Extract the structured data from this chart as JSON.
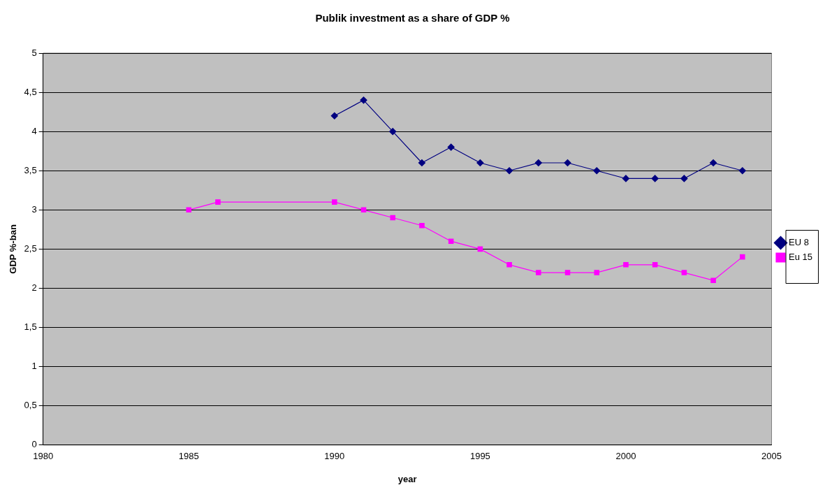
{
  "chart_data": {
    "type": "line",
    "title": "Publik investment as a share of GDP %",
    "xlabel": "year",
    "ylabel": "GDP %-ban",
    "xlim": [
      1980,
      2005
    ],
    "xticks": [
      1980,
      1985,
      1990,
      1995,
      2000,
      2005
    ],
    "ylim": [
      0,
      5
    ],
    "yticks": [
      0,
      {
        "value": 0.5,
        "label": "0,5"
      },
      1,
      {
        "value": 1.5,
        "label": "1,5"
      },
      2,
      {
        "value": 2.5,
        "label": "2,5"
      },
      3,
      {
        "value": 3.5,
        "label": "3,5"
      },
      4,
      {
        "value": 4.5,
        "label": "4,5"
      },
      5
    ],
    "grid": "y",
    "legend": "right",
    "series": [
      {
        "name": "EU 8",
        "color": "#000080",
        "marker": "diamond",
        "x": [
          1990,
          1991,
          1992,
          1993,
          1994,
          1995,
          1996,
          1997,
          1998,
          1999,
          2000,
          2001,
          2002,
          2003,
          2004
        ],
        "values": [
          4.2,
          4.4,
          4.0,
          3.6,
          3.8,
          3.6,
          3.5,
          3.6,
          3.6,
          3.5,
          3.4,
          3.4,
          3.4,
          3.6,
          3.5
        ]
      },
      {
        "name": "Eu 15",
        "color": "#ff00ff",
        "marker": "square",
        "x": [
          1985,
          1986,
          1990,
          1991,
          1992,
          1993,
          1994,
          1995,
          1996,
          1997,
          1998,
          1999,
          2000,
          2001,
          2002,
          2003,
          2004
        ],
        "values": [
          3.0,
          3.1,
          3.1,
          3.0,
          2.9,
          2.8,
          2.6,
          2.5,
          2.3,
          2.2,
          2.2,
          2.2,
          2.3,
          2.3,
          2.2,
          2.1,
          2.4
        ]
      }
    ]
  }
}
